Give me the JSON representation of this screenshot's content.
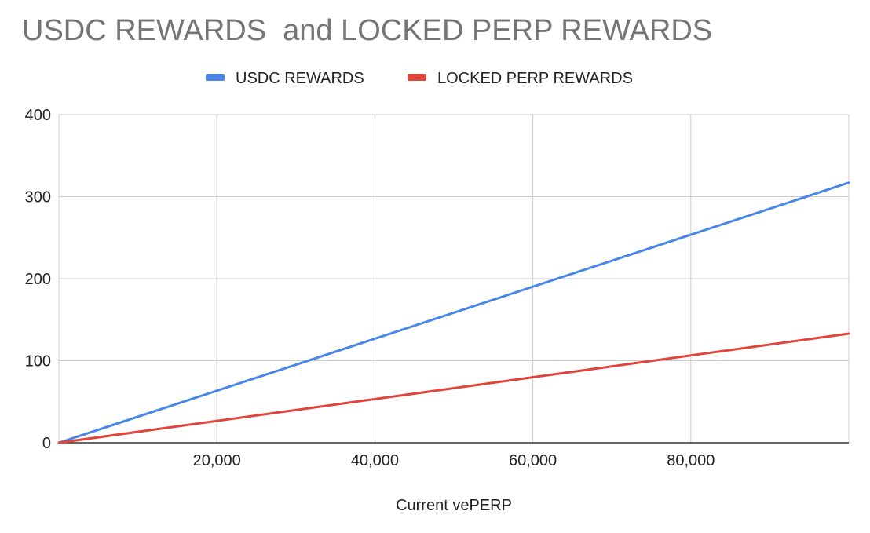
{
  "chart_data": {
    "type": "line",
    "title": "USDC REWARDS  and LOCKED PERP REWARDS",
    "xlabel": "Current vePERP",
    "ylabel": "",
    "x": [
      0,
      100000
    ],
    "series": [
      {
        "name": "USDC REWARDS",
        "color": "#4a86e8",
        "values": [
          0,
          317
        ]
      },
      {
        "name": "LOCKED PERP REWARDS",
        "color": "#e0443a",
        "values": [
          0,
          133
        ]
      }
    ],
    "xlim": [
      0,
      100000
    ],
    "ylim": [
      0,
      400
    ],
    "x_ticks": [
      20000,
      40000,
      60000,
      80000
    ],
    "x_tick_labels": [
      "20,000",
      "40,000",
      "60,000",
      "80,000"
    ],
    "y_ticks": [
      0,
      100,
      200,
      300,
      400
    ],
    "y_tick_labels": [
      "0",
      "100",
      "200",
      "300",
      "400"
    ],
    "grid": true,
    "legend_position": "top"
  }
}
